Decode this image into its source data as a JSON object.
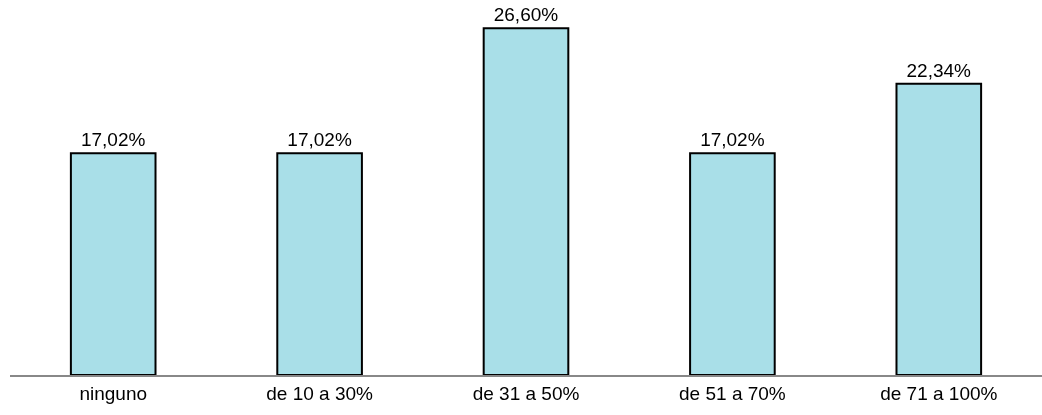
{
  "chart_data": {
    "type": "bar",
    "categories": [
      "ninguno",
      "de 10 a 30%",
      "de 31 a 50%",
      "de 51 a 70%",
      "de 71 a 100%"
    ],
    "values": [
      17.02,
      17.02,
      26.6,
      17.02,
      22.34
    ],
    "value_labels": [
      "17,02%",
      "17,02%",
      "26,60%",
      "17,02%",
      "22,34%"
    ],
    "color": "#a9dfe8",
    "tick_labels": "x",
    "grid": false,
    "legend": false
  }
}
